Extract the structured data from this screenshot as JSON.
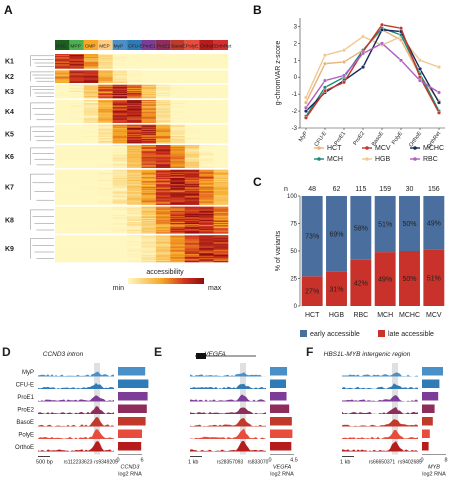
{
  "panels": {
    "A": {
      "letter": "A",
      "columns": [
        "HSC",
        "MPP",
        "CMP",
        "MEP",
        "MyP",
        "CFU-E",
        "ProE1",
        "ProE2",
        "BasoE",
        "PolyE",
        "OrthoE",
        "OrthRet"
      ],
      "column_colors": [
        "#1b5e20",
        "#4caf50",
        "#f9a825",
        "#ffcc80",
        "#4a90c8",
        "#2e7bb8",
        "#7d3c98",
        "#8e2c5c",
        "#c0392b",
        "#e74c3c",
        "#b71c1c",
        "#d32f2f"
      ],
      "clusters": [
        "K1",
        "K2",
        "K3",
        "K4",
        "K5",
        "K6",
        "K7",
        "K8",
        "K9"
      ],
      "legend_title": "accessibility",
      "legend_min": "min",
      "legend_max": "max"
    },
    "B": {
      "letter": "B",
      "legend": [
        {
          "name": "HCT",
          "color": "#e8b27a"
        },
        {
          "name": "MCH",
          "color": "#1a8a7a"
        },
        {
          "name": "MCV",
          "color": "#c0392b"
        },
        {
          "name": "HGB",
          "color": "#f0c890"
        },
        {
          "name": "MCHC",
          "color": "#1a2a5a"
        },
        {
          "name": "RBC",
          "color": "#b060c0"
        }
      ]
    },
    "C": {
      "letter": "C",
      "n_label": "n",
      "legend": [
        {
          "name": "early accessible",
          "color": "#4a6f9e"
        },
        {
          "name": "late accessible",
          "color": "#c8322a"
        }
      ]
    },
    "D": {
      "letter": "D",
      "title": "CCND3 intron",
      "tracks": [
        "MyP",
        "CFU-E",
        "ProE1",
        "ProE2",
        "BasoE",
        "PolyE",
        "OrthoE"
      ],
      "track_colors": [
        "#4a90c8",
        "#2e7bb8",
        "#7d3c98",
        "#8e2c5c",
        "#c0392b",
        "#e74c3c",
        "#b71c1c"
      ],
      "scale": "500 bp",
      "snp1": "rs112233623",
      "snp2": "rs9349205",
      "gene": "CCND3",
      "rna_label": "log2 RNA",
      "ticks": [
        "0",
        "6"
      ],
      "rna": [
        6.8,
        7.6,
        7.4,
        7.2,
        6.9,
        6.0,
        5.8
      ]
    },
    "E": {
      "letter": "E",
      "title": "VEGFA",
      "scale": "1 kb",
      "snp1": "rs28357093",
      "snp2": "rs833070",
      "gene": "VEGFA",
      "rna_label": "log2 RNA",
      "ticks": [
        "0",
        "4.5"
      ],
      "rna": [
        3.2,
        3.0,
        3.1,
        3.6,
        4.1,
        4.2,
        4.0
      ]
    },
    "F": {
      "letter": "F",
      "title": "HBS1L-MYB intergenic region",
      "scale": "1 kb",
      "snp1": "rs66650371",
      "snp2": "rs9402685",
      "gene": "MYB",
      "rna_label": "log2 RNA",
      "ticks": [
        "0",
        "8"
      ],
      "rna": [
        7.0,
        5.8,
        5.4,
        4.2,
        3.6,
        2.6,
        2.2
      ]
    }
  },
  "chart_data": [
    {
      "type": "line",
      "panel": "B",
      "ylabel": "g-chromVAR z-score",
      "categories": [
        "MyP",
        "CFU-E",
        "ProE1",
        "ProE2",
        "BasoE",
        "PolyE",
        "OrthoE",
        "OrthRet"
      ],
      "ylim": [
        -3,
        3.5
      ],
      "yticks": [
        -3,
        -2,
        -1,
        0,
        1,
        2,
        3
      ],
      "series": [
        {
          "name": "HCT",
          "color": "#e8b27a",
          "values": [
            -1.5,
            0.8,
            0.9,
            1.6,
            2.8,
            2.2,
            0.1,
            -1.4
          ]
        },
        {
          "name": "HGB",
          "color": "#f0c890",
          "values": [
            -1.2,
            1.3,
            1.6,
            2.4,
            1.9,
            2.4,
            1.0,
            0.6
          ]
        },
        {
          "name": "MCH",
          "color": "#1a8a7a",
          "values": [
            -2.3,
            -0.6,
            0.0,
            1.6,
            2.9,
            2.5,
            0.2,
            -2.0
          ]
        },
        {
          "name": "MCHC",
          "color": "#1a2a5a",
          "values": [
            -2.0,
            -0.9,
            -0.2,
            0.6,
            2.8,
            2.7,
            0.5,
            -1.5
          ]
        },
        {
          "name": "MCV",
          "color": "#c0392b",
          "values": [
            -2.4,
            -0.8,
            -0.3,
            1.5,
            3.1,
            2.9,
            0.0,
            -2.1
          ]
        },
        {
          "name": "RBC",
          "color": "#b060c0",
          "values": [
            -1.8,
            -0.2,
            0.1,
            1.4,
            2.0,
            1.0,
            -0.2,
            -0.9
          ]
        }
      ]
    },
    {
      "type": "bar",
      "panel": "C",
      "ylabel": "% of variants",
      "categories": [
        "HCT",
        "HGB",
        "RBC",
        "MCH",
        "MCHC",
        "MCV"
      ],
      "n": [
        48,
        62,
        115,
        159,
        30,
        156
      ],
      "ylim": [
        0,
        100
      ],
      "yticks": [
        0,
        25,
        50,
        75,
        100
      ],
      "series": [
        {
          "name": "late accessible",
          "values": [
            27,
            31,
            42,
            49,
            50,
            51
          ],
          "labels": [
            "27%",
            "31%",
            "42%",
            "49%",
            "50%",
            "51%"
          ]
        },
        {
          "name": "early accessible",
          "values": [
            73,
            69,
            58,
            51,
            50,
            49
          ],
          "labels": [
            "73%",
            "69%",
            "58%",
            "51%",
            "50%",
            "49%"
          ]
        }
      ]
    }
  ]
}
